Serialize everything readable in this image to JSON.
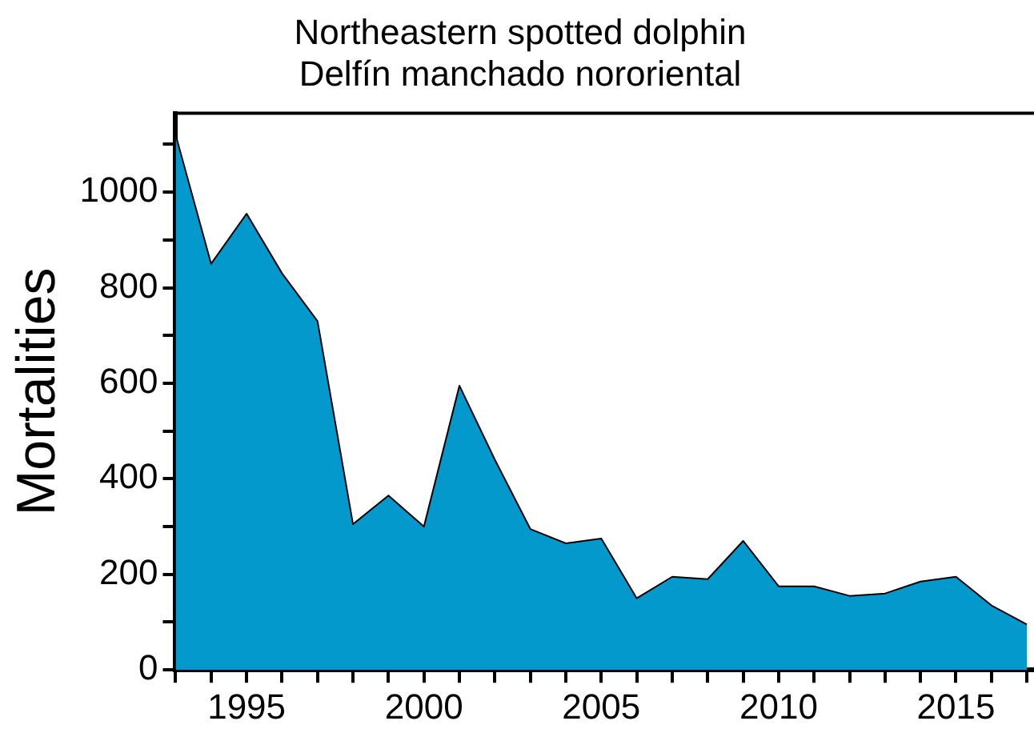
{
  "chart_data": {
    "type": "area",
    "title": [
      "Northeastern spotted dolphin",
      "Delfín manchado nororiental"
    ],
    "ylabel": "Mortalities",
    "x": [
      1993,
      1994,
      1995,
      1996,
      1997,
      1998,
      1999,
      2000,
      2001,
      2002,
      2003,
      2004,
      2005,
      2006,
      2007,
      2008,
      2009,
      2010,
      2011,
      2012,
      2013,
      2014,
      2015,
      2016,
      2017
    ],
    "series": [
      {
        "color": "#0399cc",
        "values": [
          1120,
          850,
          955,
          830,
          730,
          305,
          365,
          300,
          595,
          440,
          295,
          265,
          275,
          150,
          195,
          190,
          270,
          175,
          175,
          155,
          160,
          185,
          195,
          135,
          95
        ]
      }
    ],
    "xlim": [
      1993,
      2017.2
    ],
    "xticks": [
      {
        "value": 1993,
        "label": null
      },
      {
        "value": 1994,
        "label": null
      },
      1995,
      {
        "value": 1996,
        "label": null
      },
      {
        "value": 1997,
        "label": null
      },
      {
        "value": 1998,
        "label": null
      },
      {
        "value": 1999,
        "label": null
      },
      2000,
      {
        "value": 2001,
        "label": null
      },
      {
        "value": 2002,
        "label": null
      },
      {
        "value": 2003,
        "label": null
      },
      {
        "value": 2004,
        "label": null
      },
      2005,
      {
        "value": 2006,
        "label": null
      },
      {
        "value": 2007,
        "label": null
      },
      {
        "value": 2008,
        "label": null
      },
      {
        "value": 2009,
        "label": null
      },
      2010,
      {
        "value": 2011,
        "label": null
      },
      {
        "value": 2012,
        "label": null
      },
      {
        "value": 2013,
        "label": null
      },
      {
        "value": 2014,
        "label": null
      },
      2015,
      {
        "value": 2016,
        "label": null
      },
      {
        "value": 2017,
        "label": null
      }
    ],
    "ylim": [
      0,
      1165
    ],
    "yticks": [
      0,
      {
        "value": 100,
        "label": null
      },
      200,
      {
        "value": 300,
        "label": null
      },
      400,
      {
        "value": 500,
        "label": null
      },
      600,
      {
        "value": 700,
        "label": null
      },
      800,
      {
        "value": 900,
        "label": null
      },
      1000,
      {
        "value": 1100,
        "label": null
      }
    ],
    "grid": false,
    "legend": false
  }
}
